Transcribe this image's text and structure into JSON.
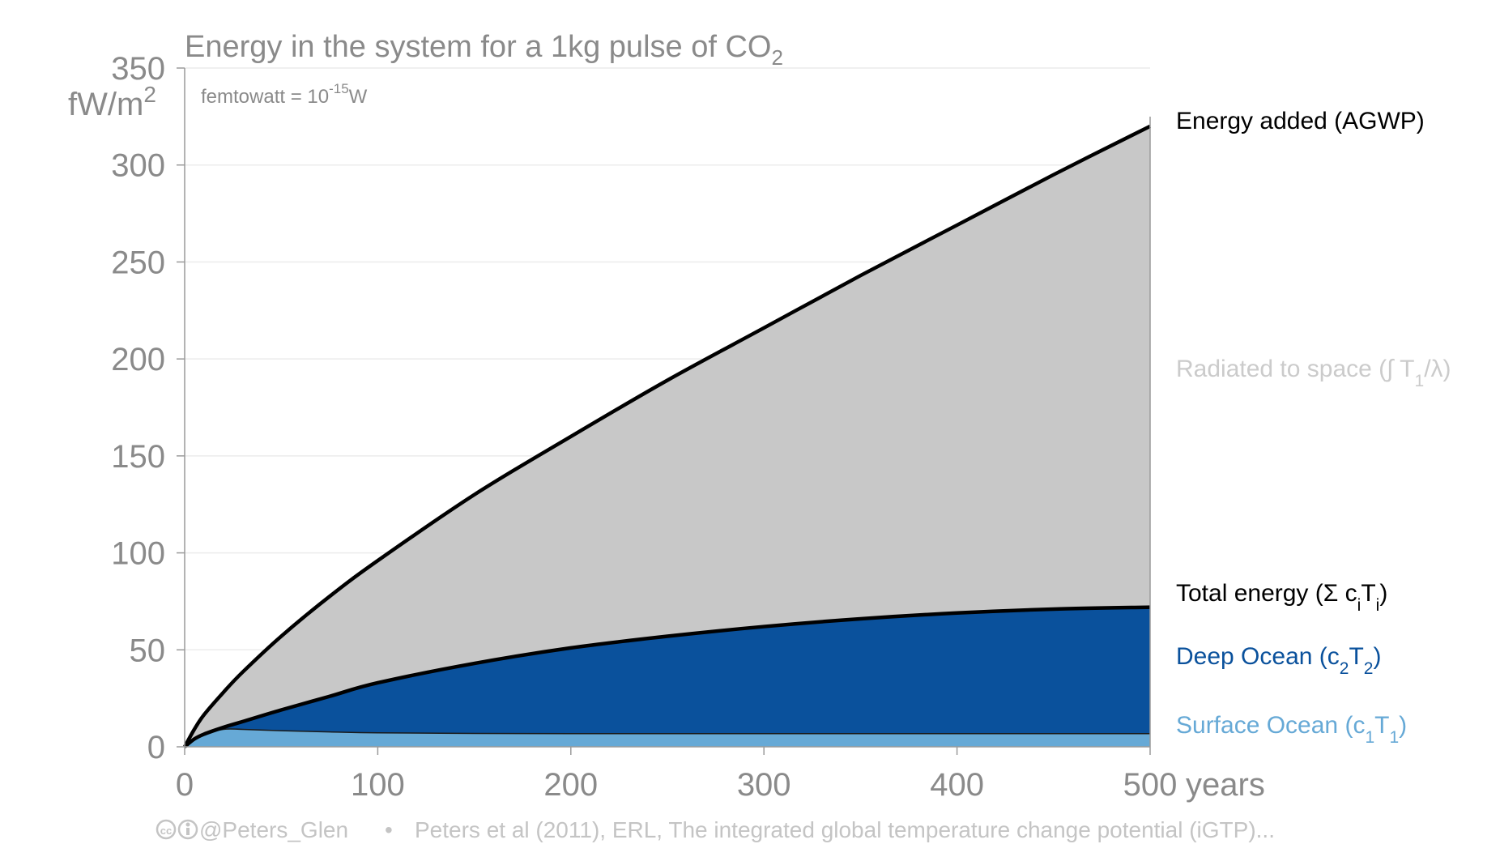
{
  "colors": {
    "radiated": "#c8c8c8",
    "deep_ocean": "#0a519c",
    "surface_ocean": "#66a9d6",
    "line": "#000000",
    "text_muted": "#8a8a8a",
    "label_radiated": "#cbcbcb",
    "footer": "#c4c4c4"
  },
  "chart_data": {
    "type": "area",
    "title": "Energy in the system for a 1kg pulse of CO",
    "title_subscript": "2",
    "unit_note": "femtowatt = 10",
    "unit_note_exp": "-15",
    "unit_note_tail": "W",
    "ylabel": "fW/m",
    "ylabel_exp": "2",
    "xlabel": "years",
    "xlim": [
      0,
      500
    ],
    "ylim": [
      0,
      350
    ],
    "xticks": [
      0,
      100,
      200,
      300,
      400,
      500
    ],
    "yticks": [
      0,
      50,
      100,
      150,
      200,
      250,
      300,
      350
    ],
    "x": [
      0,
      5,
      10,
      20,
      30,
      50,
      75,
      100,
      150,
      200,
      250,
      300,
      350,
      400,
      450,
      500
    ],
    "series": [
      {
        "name": "Energy added (AGWP)",
        "values": [
          0,
          9,
          16.5,
          28,
          38.5,
          57,
          77.5,
          96,
          130,
          160,
          189,
          216,
          243,
          269,
          295,
          320
        ]
      },
      {
        "name": "Total energy",
        "values": [
          0,
          4,
          6.5,
          10,
          13,
          19,
          26,
          33,
          43,
          51,
          57,
          62,
          66,
          69,
          71,
          72
        ]
      },
      {
        "name": "Surface Ocean",
        "values": [
          0,
          4,
          6.5,
          9,
          9,
          8.3,
          7.7,
          7.2,
          6.9,
          6.8,
          6.8,
          6.8,
          6.8,
          6.8,
          6.8,
          6.8
        ]
      }
    ],
    "labels": {
      "agwp": "Energy added (AGWP)",
      "radiated": {
        "text": "Radiated to space (∫ T",
        "sub": "1",
        "tail": "/λ)"
      },
      "total": {
        "text": "Total energy (Σ c",
        "sub1": "i",
        "mid": "T",
        "sub2": "i",
        "tail": ")"
      },
      "deep": {
        "text": "Deep Ocean (c",
        "sub1": "2",
        "mid": "T",
        "sub2": "2",
        "tail": ")"
      },
      "surface": {
        "text": "Surface Ocean (c",
        "sub1": "1",
        "mid": "T",
        "sub2": "1",
        "tail": ")"
      }
    }
  },
  "footer": {
    "handle": "@Peters_Glen",
    "bullet": "•",
    "citation": "Peters et al (2011), ERL, The integrated global temperature change potential (iGTP)..."
  }
}
